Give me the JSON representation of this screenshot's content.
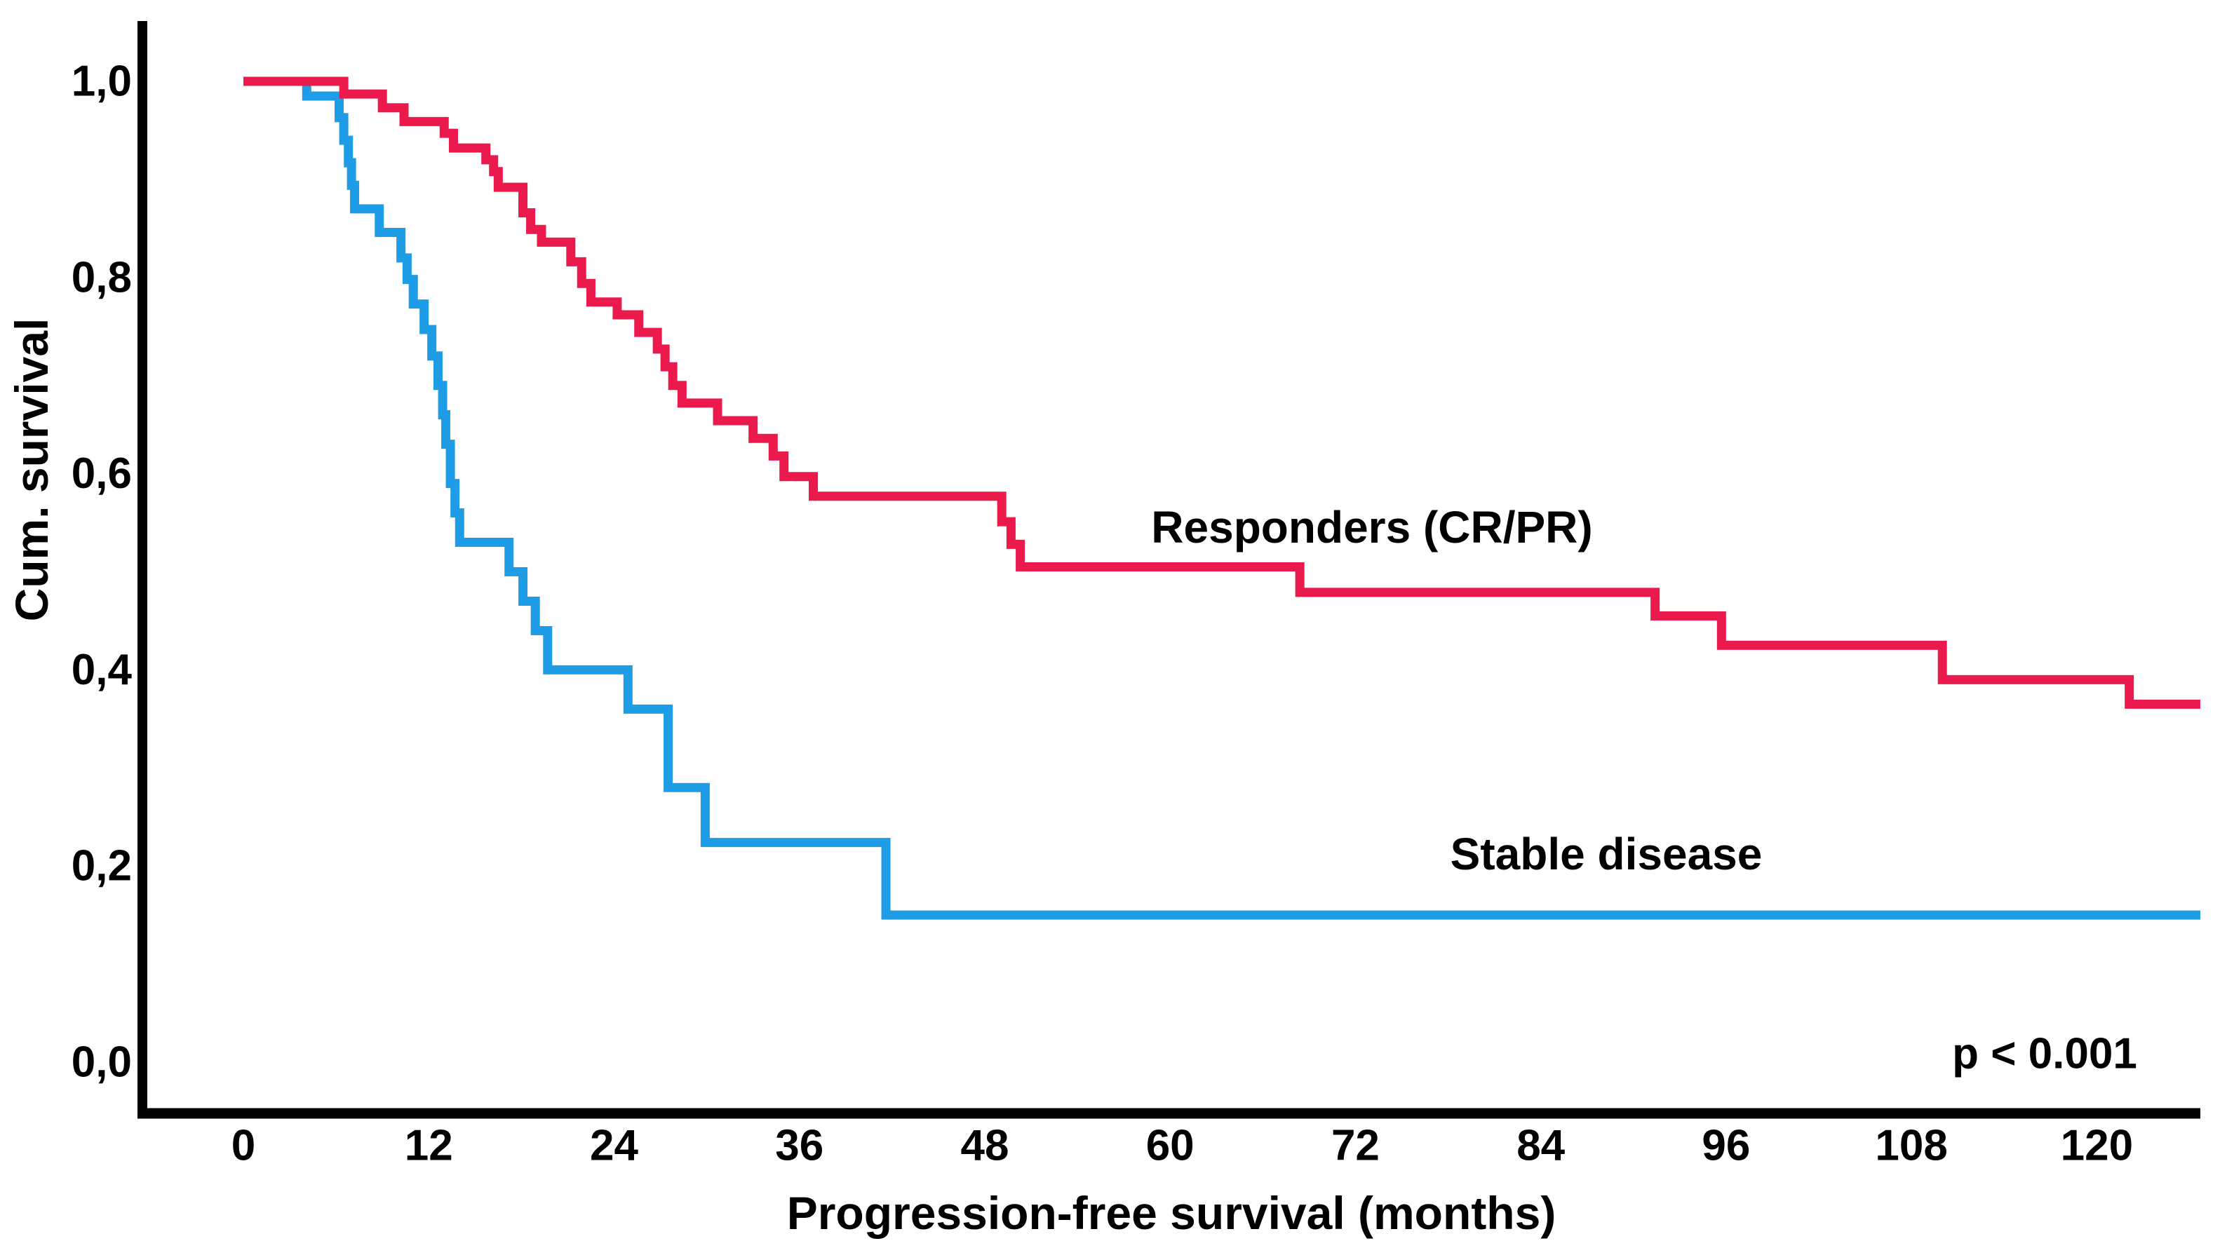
{
  "chart_data": {
    "type": "line",
    "subtype": "kaplan-meier-step-curves",
    "title": "",
    "xlabel": "Progression-free survival (months)",
    "ylabel": "Cum. survival",
    "p_value_text": "p < 0.001",
    "xlim": [
      0,
      126.7
    ],
    "ylim": [
      0.0,
      1.0
    ],
    "grid": false,
    "legend_position": "labels-inside-plot",
    "x_ticks": [
      0,
      12,
      24,
      36,
      48,
      60,
      72,
      84,
      96,
      108,
      120
    ],
    "y_ticks": [
      {
        "value": 1.0,
        "label": "1,0"
      },
      {
        "value": 0.8,
        "label": "0,8"
      },
      {
        "value": 0.6,
        "label": "0,6"
      },
      {
        "value": 0.4,
        "label": "0,4"
      },
      {
        "value": 0.2,
        "label": "0,2"
      },
      {
        "value": 0.0,
        "label": "0,0"
      }
    ],
    "x_end": 126.7,
    "series": [
      {
        "name": "Stable disease",
        "color": "#1E9CE5",
        "points": [
          [
            0,
            1.0
          ],
          [
            4.1,
            0.985
          ],
          [
            6.2,
            0.963
          ],
          [
            6.5,
            0.94
          ],
          [
            6.8,
            0.917
          ],
          [
            7.0,
            0.894
          ],
          [
            7.2,
            0.87
          ],
          [
            8.8,
            0.846
          ],
          [
            10.2,
            0.82
          ],
          [
            10.6,
            0.798
          ],
          [
            11.0,
            0.773
          ],
          [
            11.7,
            0.747
          ],
          [
            12.2,
            0.72
          ],
          [
            12.6,
            0.69
          ],
          [
            12.9,
            0.66
          ],
          [
            13.1,
            0.63
          ],
          [
            13.4,
            0.59
          ],
          [
            13.7,
            0.56
          ],
          [
            14.0,
            0.53
          ],
          [
            17.2,
            0.5
          ],
          [
            18.1,
            0.47
          ],
          [
            18.9,
            0.44
          ],
          [
            19.7,
            0.4
          ],
          [
            24.9,
            0.36
          ],
          [
            27.5,
            0.28
          ],
          [
            29.9,
            0.224
          ],
          [
            41.6,
            0.15
          ]
        ]
      },
      {
        "name": "Responders (CR/PR)",
        "color": "#EA1A4D",
        "points": [
          [
            0,
            1.0
          ],
          [
            6.5,
            0.987
          ],
          [
            9.0,
            0.973
          ],
          [
            10.4,
            0.959
          ],
          [
            13.0,
            0.947
          ],
          [
            13.6,
            0.932
          ],
          [
            15.7,
            0.92
          ],
          [
            16.2,
            0.908
          ],
          [
            16.5,
            0.892
          ],
          [
            18.1,
            0.866
          ],
          [
            18.6,
            0.849
          ],
          [
            19.3,
            0.836
          ],
          [
            21.2,
            0.816
          ],
          [
            21.9,
            0.794
          ],
          [
            22.5,
            0.775
          ],
          [
            24.2,
            0.762
          ],
          [
            25.6,
            0.744
          ],
          [
            26.8,
            0.727
          ],
          [
            27.3,
            0.709
          ],
          [
            27.8,
            0.69
          ],
          [
            28.4,
            0.672
          ],
          [
            30.7,
            0.654
          ],
          [
            33.0,
            0.636
          ],
          [
            34.3,
            0.618
          ],
          [
            35.0,
            0.597
          ],
          [
            36.9,
            0.577
          ],
          [
            49.1,
            0.551
          ],
          [
            49.7,
            0.528
          ],
          [
            50.3,
            0.505
          ],
          [
            68.4,
            0.479
          ],
          [
            91.4,
            0.455
          ],
          [
            95.7,
            0.425
          ],
          [
            110.0,
            0.39
          ],
          [
            122.1,
            0.365
          ]
        ]
      }
    ]
  },
  "labels": {
    "responders": "Responders (CR/PR)",
    "stable": "Stable disease",
    "p_value": "p < 0.001",
    "x_axis_title": "Progression-free survival (months)",
    "y_axis_title": "Cum. survival"
  }
}
